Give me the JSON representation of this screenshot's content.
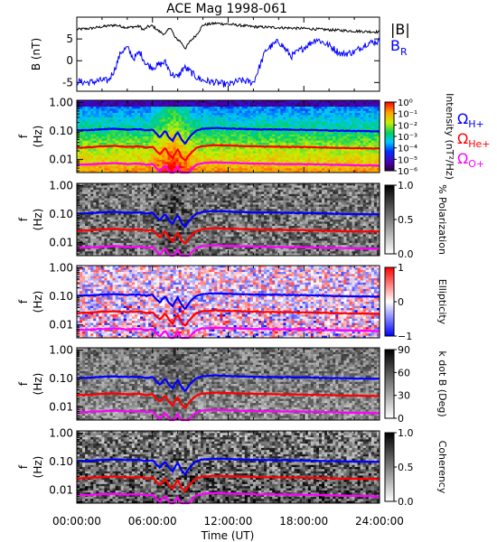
{
  "chart_data": {
    "type": "multi-panel",
    "title": "ACE Mag 1998-061",
    "xlabel": "Time (UT)",
    "x_tick_labels": [
      "00:00:00",
      "06:00:00",
      "12:00:00",
      "18:00:00",
      "24:00:00"
    ],
    "x_range_hours": [
      0,
      24
    ],
    "panels": [
      {
        "type": "line",
        "ylabel": "B (nT)",
        "ylim": [
          -7,
          10
        ],
        "y_ticks": [
          5,
          0,
          -5
        ],
        "series": [
          {
            "name": "|B|",
            "color": "#000000",
            "x": [
              0,
              1,
              2,
              3,
              4,
              4.5,
              5,
              5.3,
              5.6,
              6,
              6.5,
              7,
              7.4,
              7.8,
              8.2,
              8.6,
              9,
              9.5,
              10,
              11,
              12,
              14,
              16,
              18,
              20,
              22,
              24
            ],
            "values": [
              7.2,
              7.4,
              7.8,
              8.2,
              7.6,
              7.8,
              7.9,
              7.0,
              7.8,
              8.0,
              6.8,
              6.0,
              7.8,
              5.2,
              4.5,
              2.8,
              4.5,
              6.0,
              8.2,
              8.6,
              8.4,
              7.8,
              7.6,
              7.4,
              7.1,
              6.8,
              6.6
            ]
          },
          {
            "name": "B_R",
            "color": "#0000ff",
            "x": [
              0,
              1,
              2,
              2.5,
              3,
              3.5,
              4,
              4.5,
              5,
              5.5,
              6,
              6.5,
              7,
              7.5,
              8,
              8.5,
              9,
              9.5,
              10,
              11,
              12,
              13,
              14,
              15,
              16,
              17,
              18,
              19,
              20,
              21,
              22,
              23,
              24
            ],
            "values": [
              -4.8,
              -5.0,
              -4.5,
              -4.6,
              -2.0,
              2.0,
              3.0,
              0.5,
              2.0,
              -0.8,
              -1.5,
              -1.0,
              -0.3,
              -3.0,
              -3.8,
              -1.5,
              -2.5,
              -3.8,
              -4.5,
              -5.0,
              -5.5,
              -4.5,
              -5.0,
              2.5,
              4.5,
              1.0,
              3.0,
              5.0,
              3.5,
              1.5,
              2.0,
              4.0,
              4.5
            ]
          }
        ]
      },
      {
        "type": "heatmap",
        "ylabel": "f (Hz)",
        "y_scale": "log",
        "ylim": [
          0.0035,
          1.2
        ],
        "y_tick_labels": [
          "1.00",
          "0.10",
          "0.01"
        ],
        "colorbar": {
          "label": "Intensity (nT²/Hz)",
          "tick_labels": [
            "10⁰",
            "10⁻¹",
            "10⁻²",
            "10⁻³",
            "10⁻⁴",
            "10⁻⁵",
            "10⁻⁶"
          ],
          "colormap": "rainbow"
        },
        "legend": [
          {
            "label": "Ω",
            "sub": "H+",
            "color": "#0000ff"
          },
          {
            "label": "Ω",
            "sub": "He+",
            "color": "#ff0000"
          },
          {
            "label": "Ω",
            "sub": "O+",
            "color": "#ff00ff"
          }
        ]
      },
      {
        "type": "heatmap",
        "ylabel": "f (Hz)",
        "y_scale": "log",
        "ylim": [
          0.0035,
          1.2
        ],
        "y_tick_labels": [
          "1.00",
          "0.10",
          "0.01"
        ],
        "colorbar": {
          "label": "% Polarization",
          "tick_labels": [
            "1.0",
            "0.5",
            "0.0"
          ],
          "colormap": "gray"
        }
      },
      {
        "type": "heatmap",
        "ylabel": "f (Hz)",
        "y_scale": "log",
        "ylim": [
          0.0035,
          1.2
        ],
        "y_tick_labels": [
          "1.00",
          "0.10",
          "0.01"
        ],
        "colorbar": {
          "label": "Ellipticity",
          "tick_labels": [
            "1",
            "0",
            "−1"
          ],
          "colormap": "blue-white-red"
        }
      },
      {
        "type": "heatmap",
        "ylabel": "f (Hz)",
        "y_scale": "log",
        "ylim": [
          0.0035,
          1.2
        ],
        "y_tick_labels": [
          "1.00",
          "0.10",
          "0.01"
        ],
        "colorbar": {
          "label": "k dot B (Deg)",
          "tick_labels": [
            "90",
            "60",
            "30",
            "0"
          ],
          "colormap": "gray"
        }
      },
      {
        "type": "heatmap",
        "ylabel": "f (Hz)",
        "y_scale": "log",
        "ylim": [
          0.0035,
          1.2
        ],
        "y_tick_labels": [
          "1.00",
          "0.10",
          "0.01"
        ],
        "colorbar": {
          "label": "Coherency",
          "tick_labels": [
            "1.0",
            "0.5",
            "0.0"
          ],
          "colormap": "gray"
        }
      }
    ],
    "gyrofrequency_lines": {
      "x": [
        0,
        1,
        2,
        3,
        4,
        5,
        5.5,
        6,
        6.3,
        6.6,
        7,
        7.3,
        7.6,
        8,
        8.3,
        8.6,
        9,
        9.5,
        10,
        11,
        12,
        14,
        16,
        18,
        20,
        22,
        24
      ],
      "h_plus": [
        0.105,
        0.108,
        0.115,
        0.12,
        0.113,
        0.115,
        0.105,
        0.113,
        0.08,
        0.06,
        0.1,
        0.06,
        0.045,
        0.09,
        0.05,
        0.035,
        0.065,
        0.105,
        0.12,
        0.128,
        0.123,
        0.115,
        0.113,
        0.11,
        0.105,
        0.1,
        0.098
      ],
      "he_plus": [
        0.026,
        0.027,
        0.029,
        0.03,
        0.028,
        0.029,
        0.026,
        0.028,
        0.02,
        0.015,
        0.025,
        0.015,
        0.011,
        0.022,
        0.012,
        0.009,
        0.016,
        0.026,
        0.03,
        0.032,
        0.031,
        0.029,
        0.028,
        0.0275,
        0.026,
        0.025,
        0.0245
      ],
      "o_plus": [
        0.0066,
        0.0068,
        0.0072,
        0.0075,
        0.007,
        0.0072,
        0.0066,
        0.007,
        0.005,
        0.0038,
        0.0063,
        0.0038,
        0.0029,
        0.0056,
        0.0031,
        0.0022,
        0.0041,
        0.0066,
        0.0075,
        0.008,
        0.0077,
        0.0072,
        0.007,
        0.0069,
        0.0066,
        0.0063,
        0.0061
      ]
    },
    "colors": {
      "h_plus": "#0000ff",
      "he_plus": "#ff0000",
      "o_plus": "#ff00ff",
      "b_mag": "#000000",
      "b_r": "#0000ff"
    }
  }
}
